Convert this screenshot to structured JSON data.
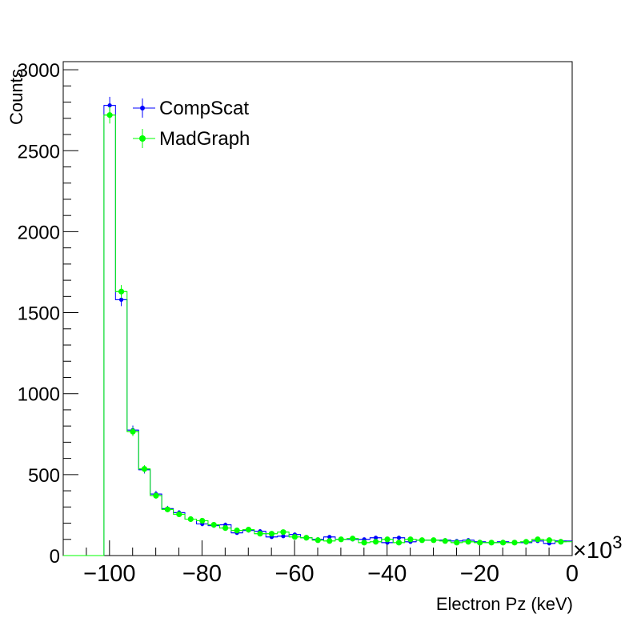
{
  "chart_data": {
    "type": "histogram",
    "xlabel": "Electron Pz (keV)",
    "ylabel": "Counts",
    "x_multiplier_label": "×10",
    "x_multiplier_exponent": "3",
    "xlim": [
      -110,
      0
    ],
    "ylim": [
      0,
      3050
    ],
    "x_ticks": [
      -100,
      -80,
      -60,
      -40,
      -20,
      0
    ],
    "y_ticks": [
      0,
      500,
      1000,
      1500,
      2000,
      2500,
      3000
    ],
    "bin_edges": [
      -101.2,
      -98.7,
      -96.2,
      -93.7,
      -91.2,
      -88.7,
      -86.2,
      -83.7,
      -81.2,
      -78.7,
      -76.2,
      -73.7,
      -71.2,
      -68.7,
      -66.2,
      -63.7,
      -61.2,
      -58.7,
      -56.2,
      -53.7,
      -51.2,
      -48.7,
      -46.2,
      -43.7,
      -41.2,
      -38.7,
      -36.2,
      -33.7,
      -31.2,
      -28.7,
      -26.2,
      -23.7,
      -21.2,
      -18.7,
      -16.2,
      -13.7,
      -11.2,
      -8.7,
      -6.2,
      -3.7,
      -1.2
    ],
    "series": [
      {
        "name": "CompScat",
        "color": "#0000ff",
        "values": [
          2780,
          1580,
          775,
          530,
          380,
          290,
          265,
          225,
          195,
          185,
          190,
          140,
          155,
          150,
          115,
          120,
          130,
          110,
          100,
          115,
          100,
          100,
          100,
          110,
          80,
          110,
          85,
          95,
          95,
          95,
          90,
          95,
          85,
          80,
          85,
          80,
          80,
          90,
          75,
          90
        ]
      },
      {
        "name": "MadGraph",
        "color": "#00ff00",
        "values": [
          2720,
          1630,
          765,
          535,
          370,
          285,
          255,
          225,
          215,
          190,
          170,
          155,
          160,
          135,
          135,
          145,
          115,
          110,
          95,
          90,
          100,
          105,
          80,
          85,
          100,
          80,
          100,
          95,
          95,
          90,
          80,
          85,
          80,
          80,
          80,
          80,
          85,
          100,
          95,
          85
        ]
      }
    ],
    "legend_position": "top-left",
    "grid": false
  }
}
